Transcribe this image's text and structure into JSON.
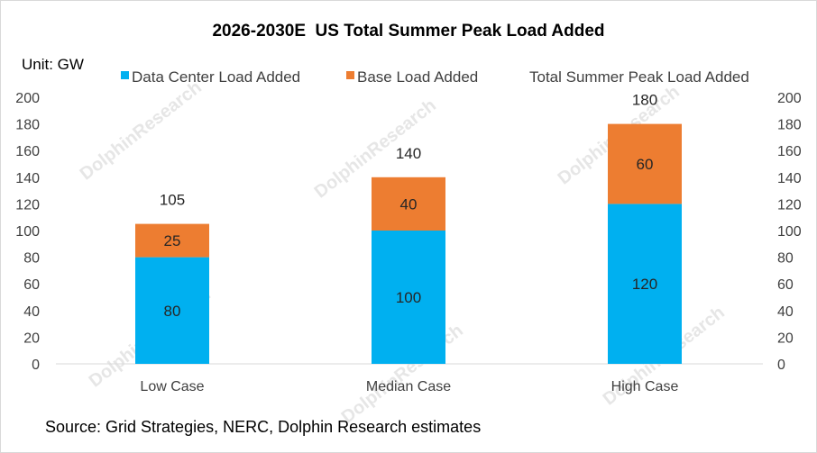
{
  "chart_data": {
    "type": "bar",
    "stacked": true,
    "title": "2026-2030E  US Total Summer Peak Load Added",
    "unit_label": "Unit: GW",
    "categories": [
      "Low Case",
      "Median Case",
      "High Case"
    ],
    "series": [
      {
        "name": "Data Center Load Added",
        "values": [
          80,
          100,
          120
        ],
        "color": "#00b0f0"
      },
      {
        "name": "Base Load Added",
        "values": [
          25,
          40,
          60
        ],
        "color": "#ed7d31"
      }
    ],
    "totals": {
      "name": "Total Summer Peak Load Added",
      "values": [
        105,
        140,
        180
      ]
    },
    "ylim": [
      0,
      200
    ],
    "yticks": [
      0,
      20,
      40,
      60,
      80,
      100,
      120,
      140,
      160,
      180,
      200
    ],
    "legend_position": "top",
    "grid": false,
    "source": "Source: Grid Strategies, NERC, Dolphin Research estimates",
    "watermark": "DolphinResearch"
  }
}
